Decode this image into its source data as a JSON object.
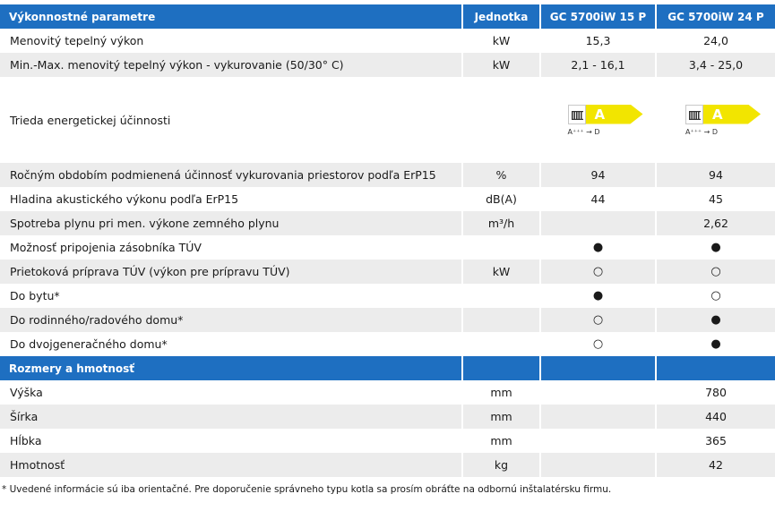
{
  "header": {
    "title": "Výkonnostné parametre",
    "unit": "Jednotka",
    "model1": "GC 5700iW 15 P",
    "model2": "GC 5700iW 24 P"
  },
  "rows": [
    {
      "label": "Menovitý tepelný výkon",
      "unit": "kW",
      "v1": "15,3",
      "v2": "24,0"
    },
    {
      "label": "Min.-Max. menovitý tepelný výkon - vykurovanie (50/30° C)",
      "unit": "kW",
      "v1": "2,1 - 16,1",
      "v2": "3,4 - 25,0"
    },
    {
      "label": "Trieda energetickej účinnosti",
      "unit": "",
      "class1": "A",
      "class2": "A",
      "scale1": "A⁺⁺⁺ → D",
      "scale2": "A⁺⁺⁺ → D"
    },
    {
      "label": "Ročným obdobím podmienená účinnosť vykurovania priestorov podľa ErP15",
      "unit": "%",
      "v1": "94",
      "v2": "94"
    },
    {
      "label": "Hladina akustického výkonu podľa ErP15",
      "unit": "dB(A)",
      "v1": "44",
      "v2": "45"
    },
    {
      "label": "Spotreba plynu pri men. výkone zemného plynu",
      "unit": "m³/h",
      "v1": "",
      "v2": "2,62"
    },
    {
      "label": "Možnosť pripojenia zásobníka TÚV",
      "unit": "",
      "v1": "●",
      "v2": "●"
    },
    {
      "label": "Prietoková príprava TÚV (výkon pre prípravu TÚV)",
      "unit": "kW",
      "v1": "○",
      "v2": "○"
    },
    {
      "label": "Do bytu*",
      "unit": "",
      "v1": "●",
      "v2": "○"
    },
    {
      "label": "Do rodinného/radového domu*",
      "unit": "",
      "v1": "○",
      "v2": "●"
    },
    {
      "label": "Do dvojgeneračného domu*",
      "unit": "",
      "v1": "○",
      "v2": "●"
    }
  ],
  "section2": {
    "title": "Rozmery a hmotnosť"
  },
  "dim_rows": [
    {
      "label": "Výška",
      "unit": "mm",
      "v2": "780"
    },
    {
      "label": "Šírka",
      "unit": "mm",
      "v2": "440"
    },
    {
      "label": "Hĺbka",
      "unit": "mm",
      "v2": "365"
    },
    {
      "label": "Hmotnosť",
      "unit": "kg",
      "v2": "42"
    }
  ],
  "footnote": "* Uvedené informácie sú iba orientačné. Pre doporučenie správneho typu kotla sa prosím obráťte na odbornú inštalatérsku firmu.",
  "colors": {
    "header_blue": "#1e6fc1",
    "stripe_gray": "#ececec",
    "energy_yellow": "#f2e500"
  },
  "icons": {
    "energy_label": "radiator-icon"
  }
}
